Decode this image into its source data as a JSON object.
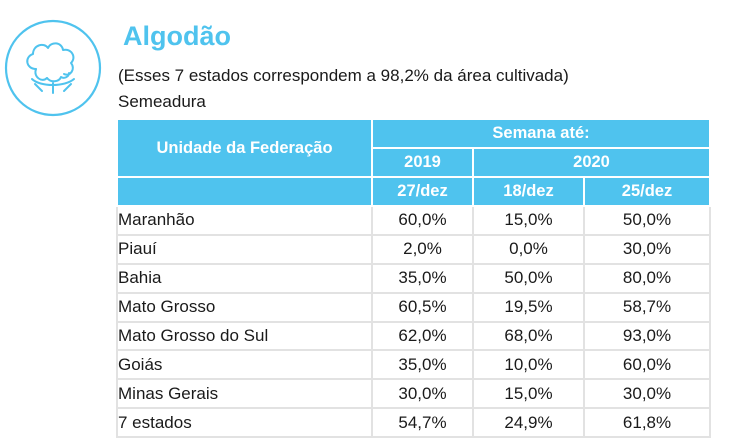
{
  "header": {
    "title": "Algodão",
    "subtitle": "(Esses 7 estados correspondem a 98,2% da área cultivada)",
    "section": "Semeadura",
    "icon": "cotton-icon",
    "accent_color": "#4fc3ee"
  },
  "table": {
    "state_header": "Unidade da Federação",
    "week_header": "Semana até:",
    "year_2019": "2019",
    "year_2020": "2020",
    "date_1": "27/dez",
    "date_2": "18/dez",
    "date_3": "25/dez",
    "rows": [
      {
        "state": "Maranhão",
        "v1": "60,0%",
        "v2": "15,0%",
        "v3": "50,0%"
      },
      {
        "state": "Piauí",
        "v1": "2,0%",
        "v2": "0,0%",
        "v3": "30,0%"
      },
      {
        "state": "Bahia",
        "v1": "35,0%",
        "v2": "50,0%",
        "v3": "80,0%"
      },
      {
        "state": "Mato Grosso",
        "v1": "60,5%",
        "v2": "19,5%",
        "v3": "58,7%"
      },
      {
        "state": "Mato Grosso do Sul",
        "v1": "62,0%",
        "v2": "68,0%",
        "v3": "93,0%"
      },
      {
        "state": "Goiás",
        "v1": "35,0%",
        "v2": "10,0%",
        "v3": "60,0%"
      },
      {
        "state": "Minas Gerais",
        "v1": "30,0%",
        "v2": "15,0%",
        "v3": "30,0%"
      }
    ],
    "total": {
      "state": "7 estados",
      "v1": "54,7%",
      "v2": "24,9%",
      "v3": "61,8%"
    }
  }
}
